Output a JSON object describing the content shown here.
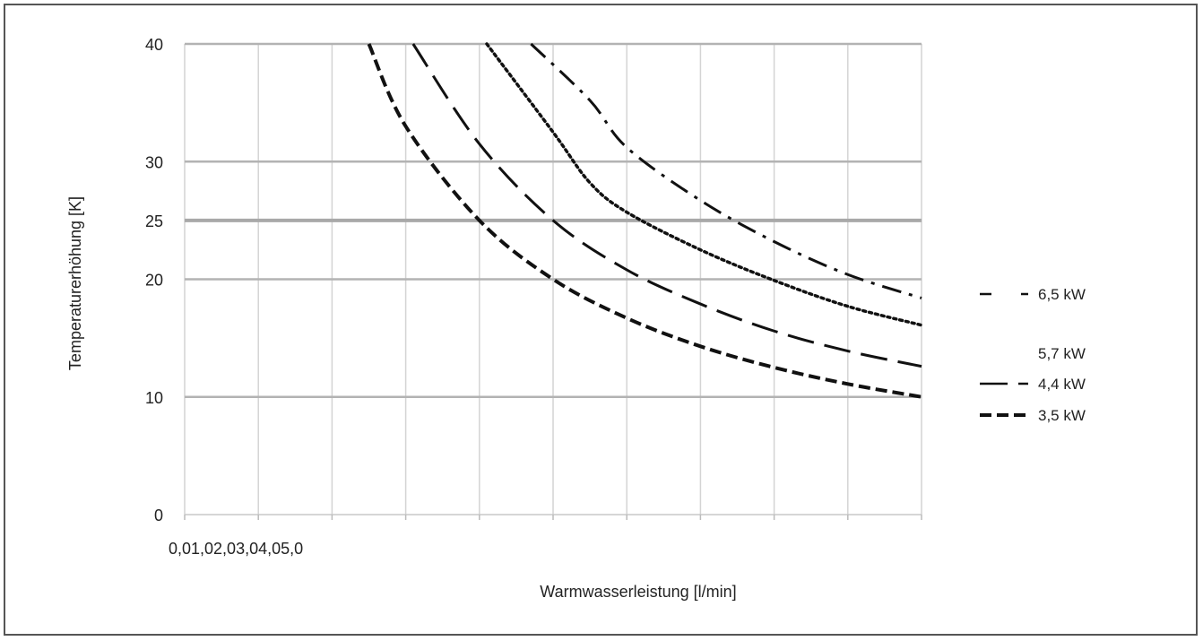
{
  "chart_data": {
    "type": "line",
    "title": "",
    "xlabel": "Warmwasserleistung [l/min]",
    "ylabel": "Temperaturerhöhung [K]",
    "x_tick_text": "0,01,02,03,04,05,0",
    "y_ticks": [
      0,
      10,
      20,
      25,
      30,
      40
    ],
    "xlim": [
      0,
      10
    ],
    "ylim": [
      0,
      40
    ],
    "grid": true,
    "legend_position": "right",
    "legend": [
      {
        "name": "6,5 kW",
        "style": "dashdot"
      },
      {
        "name": "5,7 kW",
        "style": "dotted"
      },
      {
        "name": "4,4 kW",
        "style": "longdash"
      },
      {
        "name": "3,5 kW",
        "style": "dashed"
      }
    ],
    "series": [
      {
        "name": "6,5 kW",
        "style": "dashdot",
        "x": [
          4.7,
          5.5,
          6.0,
          7.0,
          8.0,
          9.0,
          10.0
        ],
        "y": [
          40,
          35.2,
          31.2,
          26.7,
          23.2,
          20.4,
          18.4
        ]
      },
      {
        "name": "5,7 kW",
        "style": "dotted",
        "x": [
          4.1,
          5.0,
          5.5,
          6.0,
          7.0,
          8.0,
          9.0,
          10.0
        ],
        "y": [
          40,
          32.5,
          28.2,
          25.7,
          22.5,
          19.9,
          17.7,
          16.1
        ]
      },
      {
        "name": "4,4 kW",
        "style": "longdash",
        "x": [
          3.1,
          4.0,
          5.0,
          6.0,
          7.0,
          8.0,
          9.0,
          10.0
        ],
        "y": [
          40,
          31.5,
          25.0,
          20.8,
          17.9,
          15.6,
          13.9,
          12.6
        ]
      },
      {
        "name": "3,5 kW",
        "style": "dashed",
        "x": [
          2.5,
          3.0,
          4.0,
          5.0,
          6.0,
          7.0,
          8.0,
          9.0,
          10.0
        ],
        "y": [
          40,
          33.0,
          25.0,
          20.0,
          16.7,
          14.3,
          12.5,
          11.1,
          10.0
        ]
      }
    ]
  }
}
